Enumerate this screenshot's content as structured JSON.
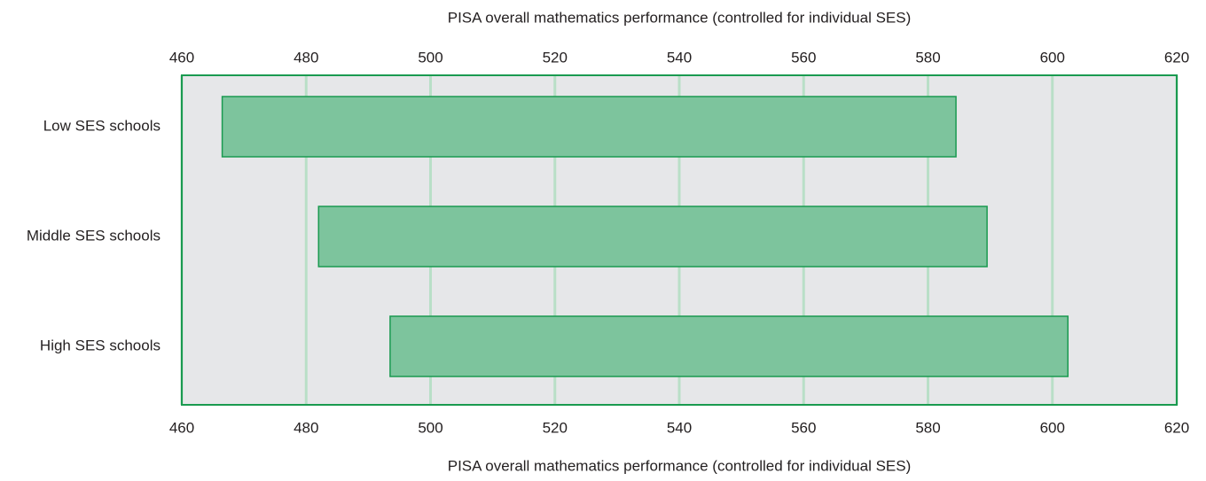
{
  "chart_data": {
    "type": "range_bar",
    "xlabel": "PISA overall mathematics performance (controlled for individual SES)",
    "x2label": "PISA overall mathematics performance (controlled for individual SES)",
    "categories": [
      "Low SES schools",
      "Middle SES schools",
      "High SES schools"
    ],
    "ranges": [
      [
        466.5,
        584.5
      ],
      [
        482,
        589.5
      ],
      [
        493.5,
        602.5
      ]
    ],
    "color": "#7dc49d",
    "edge_color": "#1a9a50",
    "xlim": [
      460,
      620
    ],
    "xticks": [
      460,
      480,
      500,
      520,
      540,
      560,
      580,
      600,
      620
    ],
    "x2lim": [
      460,
      620
    ],
    "x2ticks": [
      460,
      480,
      500,
      520,
      540,
      560,
      580,
      600,
      620
    ],
    "grid": true
  }
}
